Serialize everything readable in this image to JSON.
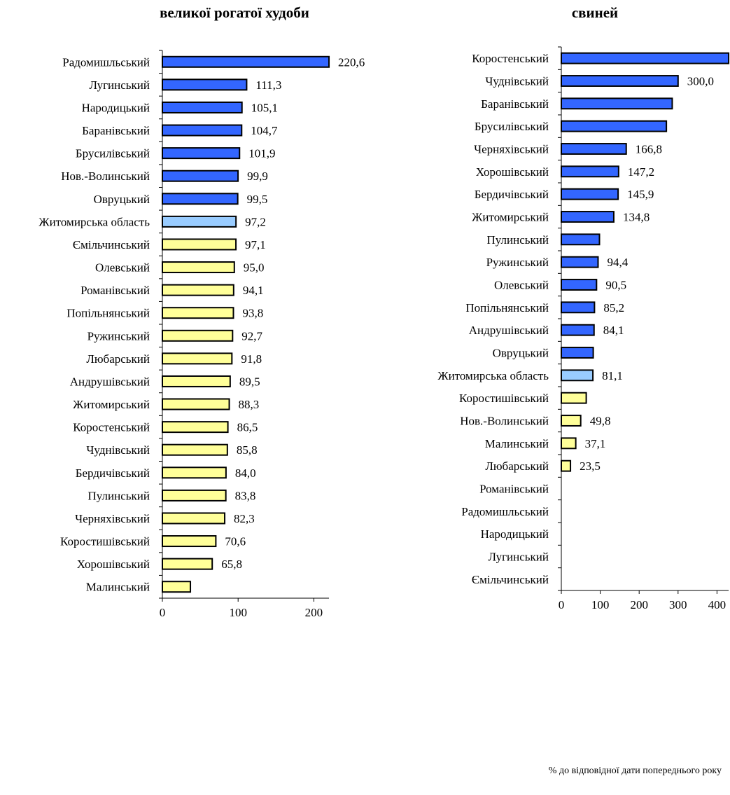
{
  "chart_data": [
    {
      "type": "bar",
      "orientation": "horizontal",
      "title": "великої рогатої худоби",
      "xlim": [
        0,
        220
      ],
      "xticks": [
        0,
        100,
        200
      ],
      "colors": {
        "above_100": "#3366ff",
        "region": "#99ccff",
        "below_100": "#ffff99"
      },
      "categories": [
        "Радомишльський",
        "Лугинський",
        "Народицький",
        "Баранівський",
        "Брусилівський",
        "Нов.-Волинський",
        "Овруцький",
        "Житомирська область",
        "Ємільчинський",
        "Олевський",
        "Романівський",
        "Попільнянський",
        "Ружинський",
        "Любарський",
        "Андрушівський",
        "Житомирський",
        "Коростенський",
        "Чуднівський",
        "Бердичівський",
        "Пулинський",
        "Черняхівський",
        "Коростишівський",
        "Хорошівський",
        "Малинський"
      ],
      "values": [
        220.6,
        111.3,
        105.1,
        104.7,
        101.9,
        99.9,
        99.5,
        97.2,
        97.1,
        95.0,
        94.1,
        93.8,
        92.7,
        91.8,
        89.5,
        88.3,
        86.5,
        85.8,
        84.0,
        83.8,
        82.3,
        70.6,
        65.8,
        37
      ],
      "value_labels": [
        "220,6",
        "111,3",
        "105,1",
        "104,7",
        "101,9",
        "99,9",
        "99,5",
        "97,2",
        "97,1",
        "95,0",
        "94,1",
        "93,8",
        "92,7",
        "91,8",
        "89,5",
        "88,3",
        "86,5",
        "85,8",
        "84,0",
        "83,8",
        "82,3",
        "70,6",
        "65,8",
        ""
      ],
      "bar_colors": [
        "above_100",
        "above_100",
        "above_100",
        "above_100",
        "above_100",
        "above_100",
        "above_100",
        "region",
        "below_100",
        "below_100",
        "below_100",
        "below_100",
        "below_100",
        "below_100",
        "below_100",
        "below_100",
        "below_100",
        "below_100",
        "below_100",
        "below_100",
        "below_100",
        "below_100",
        "below_100",
        "below_100"
      ]
    },
    {
      "type": "bar",
      "orientation": "horizontal",
      "title": "свиней",
      "xlim": [
        0,
        430
      ],
      "xticks": [
        0,
        100,
        200,
        300,
        400
      ],
      "colors": {
        "above_100": "#3366ff",
        "region": "#99ccff",
        "below_100": "#ffff99"
      },
      "categories": [
        "Коростенський",
        "Чуднівський",
        "Баранівський",
        "Брусилівський",
        "Черняхівський",
        "Хорошівський",
        "Бердичівський",
        "Житомирський",
        "Пулинський",
        "Ружинський",
        "Олевський",
        "Попільнянський",
        "Андрушівський",
        "Овруцький",
        "Житомирська область",
        "Коростишівський",
        "Нов.-Волинський",
        "Малинський",
        "Любарський",
        "Романівський",
        "Радомишльський",
        "Народицький",
        "Лугинський",
        "Ємільчинський"
      ],
      "values": [
        430,
        300.0,
        285,
        270,
        166.8,
        147.2,
        145.9,
        134.8,
        98,
        94.4,
        90.5,
        85.2,
        84.1,
        82,
        81.1,
        64,
        49.8,
        37.1,
        23.5,
        0,
        0,
        0,
        0,
        0
      ],
      "value_labels": [
        "",
        "300,0",
        "",
        "",
        "166,8",
        "147,2",
        "145,9",
        "134,8",
        "",
        "94,4",
        "90,5",
        "85,2",
        "84,1",
        "",
        "81,1",
        "",
        "49,8",
        "37,1",
        "23,5",
        "",
        "",
        "",
        "",
        ""
      ],
      "bar_colors": [
        "above_100",
        "above_100",
        "above_100",
        "above_100",
        "above_100",
        "above_100",
        "above_100",
        "above_100",
        "above_100",
        "above_100",
        "above_100",
        "above_100",
        "above_100",
        "above_100",
        "region",
        "below_100",
        "below_100",
        "below_100",
        "below_100",
        "below_100",
        "below_100",
        "below_100",
        "below_100",
        "below_100"
      ]
    }
  ],
  "footnote": "% до відповідної дати попереднього року"
}
